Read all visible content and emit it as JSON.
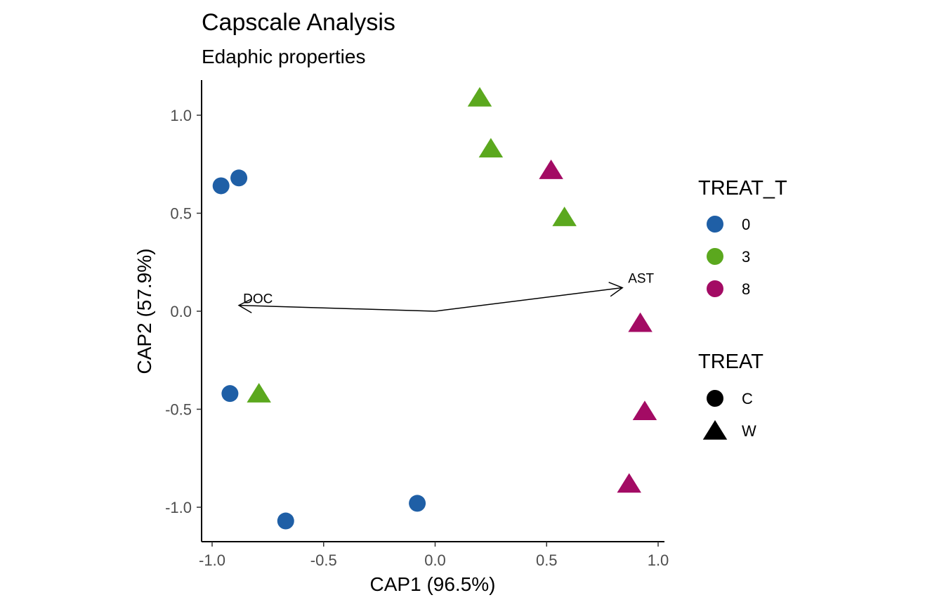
{
  "chart_data": {
    "type": "scatter",
    "title": "Capscale Analysis",
    "subtitle": "Edaphic properties",
    "xlabel": "CAP1 (96.5%)",
    "ylabel": "CAP2 (57.9%)",
    "xlim": [
      -1.06,
      1.02
    ],
    "ylim": [
      -1.18,
      1.18
    ],
    "xticks": [
      -1.0,
      -0.5,
      0.0,
      0.5,
      1.0
    ],
    "xtick_labels": [
      "-1.0",
      "-0.5",
      "0.0",
      "0.5",
      "1.0"
    ],
    "yticks": [
      -1.0,
      -0.5,
      0.0,
      0.5,
      1.0
    ],
    "ytick_labels": [
      "-1.0",
      "-0.5",
      "0.0",
      "0.5",
      "1.0"
    ],
    "grid": false,
    "legend_position": "right",
    "points": [
      {
        "x": -0.96,
        "y": 0.64,
        "treat_t": "0",
        "treat": "C"
      },
      {
        "x": -0.88,
        "y": 0.68,
        "treat_t": "0",
        "treat": "C"
      },
      {
        "x": -0.92,
        "y": -0.42,
        "treat_t": "0",
        "treat": "C"
      },
      {
        "x": -0.67,
        "y": -1.07,
        "treat_t": "0",
        "treat": "C"
      },
      {
        "x": -0.08,
        "y": -0.98,
        "treat_t": "0",
        "treat": "C"
      },
      {
        "x": 0.2,
        "y": 1.09,
        "treat_t": "3",
        "treat": "W"
      },
      {
        "x": 0.25,
        "y": 0.83,
        "treat_t": "3",
        "treat": "W"
      },
      {
        "x": 0.58,
        "y": 0.48,
        "treat_t": "3",
        "treat": "W"
      },
      {
        "x": -0.79,
        "y": -0.42,
        "treat_t": "3",
        "treat": "W"
      },
      {
        "x": 0.52,
        "y": 0.72,
        "treat_t": "8",
        "treat": "W"
      },
      {
        "x": 0.92,
        "y": -0.06,
        "treat_t": "8",
        "treat": "W"
      },
      {
        "x": 0.94,
        "y": -0.51,
        "treat_t": "8",
        "treat": "W"
      },
      {
        "x": 0.87,
        "y": -0.88,
        "treat_t": "8",
        "treat": "W"
      }
    ],
    "biplot_arrows": [
      {
        "label": "DOC",
        "x": -0.88,
        "y": 0.03
      },
      {
        "label": "AST",
        "x": 0.84,
        "y": 0.12
      }
    ],
    "legend_color": {
      "title": "TREAT_T",
      "entries": [
        {
          "label": "0",
          "color": "#1f5fa6"
        },
        {
          "label": "3",
          "color": "#5ba81e"
        },
        {
          "label": "8",
          "color": "#a30b64"
        }
      ]
    },
    "legend_shape": {
      "title": "TREAT",
      "entries": [
        {
          "label": "C",
          "shape": "circle"
        },
        {
          "label": "W",
          "shape": "triangle"
        }
      ]
    }
  }
}
